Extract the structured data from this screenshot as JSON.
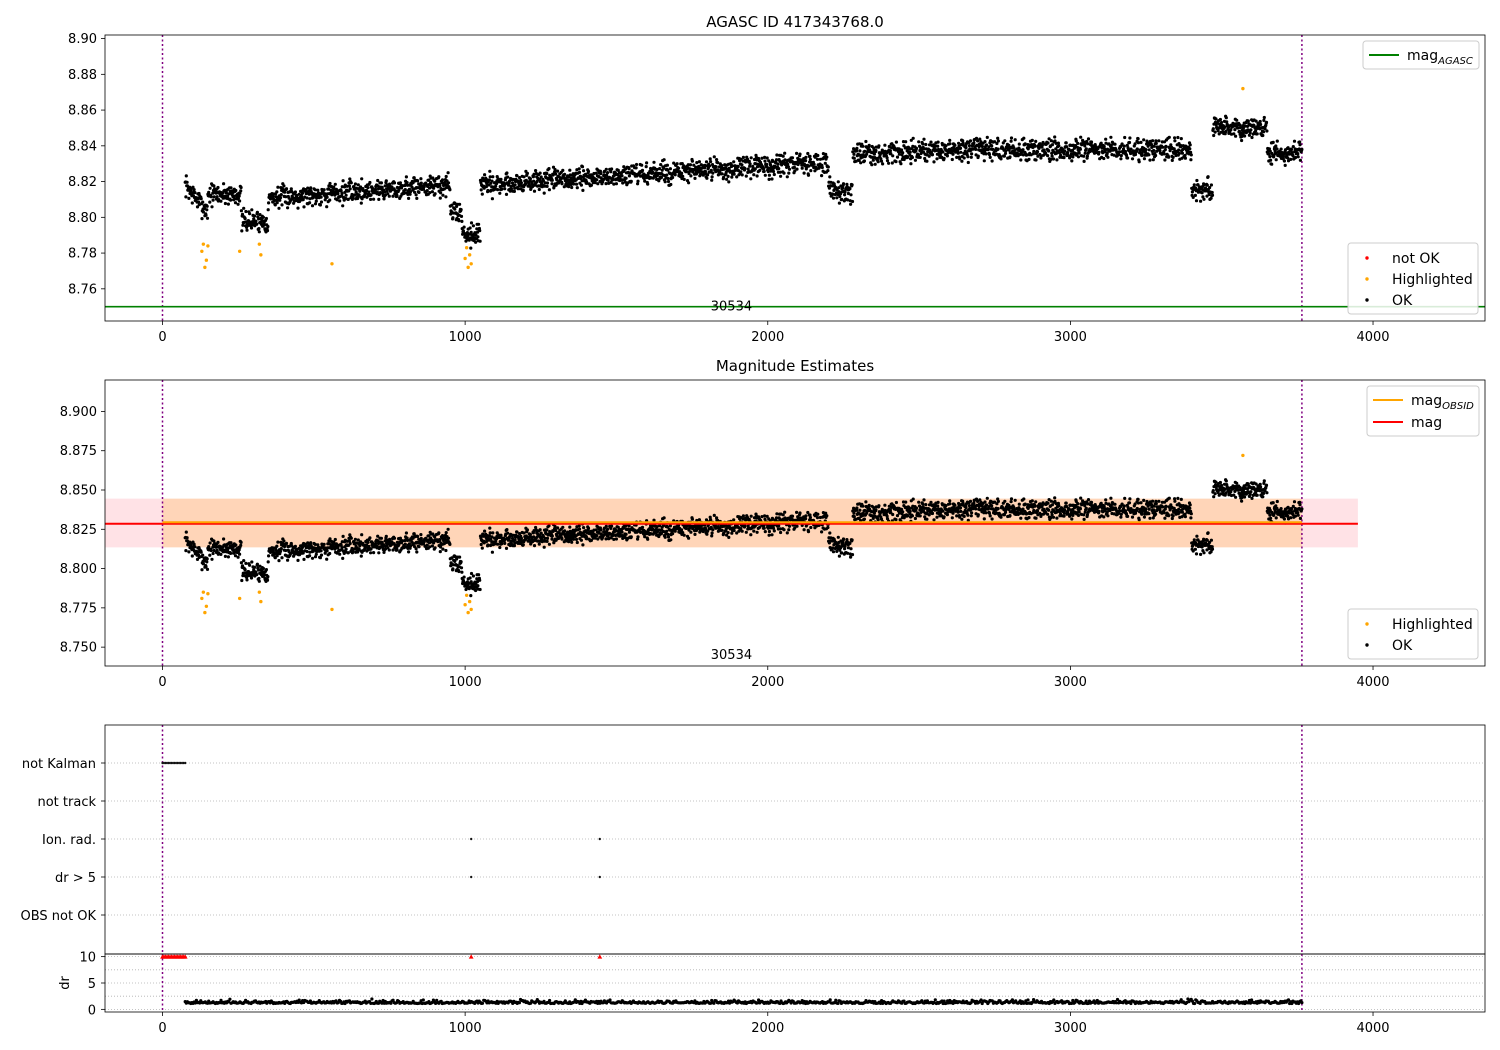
{
  "figure": {
    "title": "AGASC ID 417343768.0"
  },
  "chart_data": [
    {
      "type": "scatter",
      "title": "AGASC ID 417343768.0",
      "xlim": [
        -190,
        4370
      ],
      "ylim": [
        8.742,
        8.902
      ],
      "xticks": [
        0,
        1000,
        2000,
        3000,
        4000
      ],
      "yticks": [
        8.76,
        8.78,
        8.8,
        8.82,
        8.84,
        8.86,
        8.88,
        8.9
      ],
      "yticklabels": [
        "8.76",
        "8.78",
        "8.80",
        "8.82",
        "8.84",
        "8.86",
        "8.88",
        "8.90"
      ],
      "vlines": [
        0,
        3765
      ],
      "obsid_label": {
        "text": "30534",
        "x": 1880
      },
      "hline": {
        "label": "mag_AGASC",
        "label_main": "mag",
        "label_sub": "AGASC",
        "y": 8.75,
        "color": "#008000"
      },
      "legend_top": [
        {
          "label_main": "mag",
          "label_sub": "AGASC",
          "color": "#008000",
          "kind": "line"
        }
      ],
      "legend_bottom": [
        {
          "label": "not OK",
          "color": "#ff0000",
          "kind": "dot"
        },
        {
          "label": "Highlighted",
          "color": "#ffa500",
          "kind": "dot"
        },
        {
          "label": "OK",
          "color": "#000000",
          "kind": "dot"
        }
      ],
      "series": [
        {
          "name": "OK",
          "color": "#000000",
          "trend": "magnitude",
          "x_range": [
            75,
            3765
          ],
          "n": 3000,
          "seed": 7
        },
        {
          "name": "Highlighted",
          "color": "#ffa500",
          "x": [
            130,
            135,
            140,
            145,
            150,
            255,
            320,
            325,
            560,
            1000,
            1005,
            1010,
            1015,
            1020,
            3570
          ],
          "y": [
            8.781,
            8.785,
            8.772,
            8.776,
            8.784,
            8.781,
            8.785,
            8.779,
            8.774,
            8.777,
            8.783,
            8.772,
            8.779,
            8.774,
            8.872
          ]
        }
      ]
    },
    {
      "type": "scatter",
      "title": "Magnitude Estimates",
      "xlim": [
        -190,
        4370
      ],
      "ylim": [
        8.738,
        8.92
      ],
      "xticks": [
        0,
        1000,
        2000,
        3000,
        4000
      ],
      "yticks": [
        8.75,
        8.775,
        8.8,
        8.825,
        8.85,
        8.875,
        8.9
      ],
      "yticklabels": [
        "8.750",
        "8.775",
        "8.800",
        "8.825",
        "8.850",
        "8.875",
        "8.900"
      ],
      "vlines": [
        0,
        3765
      ],
      "obsid_label": {
        "text": "30534",
        "x": 1880
      },
      "bands": [
        {
          "x": [
            -190,
            3950
          ],
          "y": [
            8.8135,
            8.8445
          ],
          "color": "#ffb6c1",
          "opacity": 0.4
        },
        {
          "x": [
            0,
            3765
          ],
          "y": [
            8.8135,
            8.8445
          ],
          "color": "#ffa500",
          "opacity": 0.2
        }
      ],
      "lines": [
        {
          "label": "mag",
          "y": 8.8285,
          "x": [
            -190,
            3950
          ],
          "color": "#ff0000"
        },
        {
          "label": "mag_OBSID",
          "y": 8.8295,
          "x": [
            0,
            3765
          ],
          "color": "#ffa500"
        }
      ],
      "legend_top": [
        {
          "label_main": "mag",
          "label_sub": "OBSID",
          "color": "#ffa500",
          "kind": "line"
        },
        {
          "label_main": "mag",
          "label_sub": "",
          "color": "#ff0000",
          "kind": "line"
        }
      ],
      "legend_bottom": [
        {
          "label": "Highlighted",
          "color": "#ffa500",
          "kind": "dot"
        },
        {
          "label": "OK",
          "color": "#000000",
          "kind": "dot"
        }
      ],
      "series": [
        {
          "name": "OK",
          "color": "#000000",
          "trend": "magnitude",
          "x_range": [
            75,
            3765
          ],
          "n": 3000,
          "seed": 7
        },
        {
          "name": "Highlighted",
          "color": "#ffa500",
          "x": [
            130,
            135,
            140,
            145,
            150,
            255,
            320,
            325,
            560,
            1000,
            1005,
            1010,
            1015,
            1020,
            3570
          ],
          "y": [
            8.781,
            8.785,
            8.772,
            8.776,
            8.784,
            8.781,
            8.785,
            8.779,
            8.774,
            8.777,
            8.783,
            8.772,
            8.779,
            8.774,
            8.872
          ]
        }
      ]
    },
    {
      "type": "scatter",
      "title": "",
      "xlim": [
        -190,
        4370
      ],
      "categories": [
        "not Kalman",
        "not track",
        "Ion. rad.",
        "dr > 5",
        "OBS not OK"
      ],
      "vlines": [
        0,
        3765
      ],
      "flags": [
        {
          "category": "not Kalman",
          "x": [
            0,
            5,
            10,
            15,
            20,
            25,
            30,
            35,
            40,
            45,
            50,
            55,
            60,
            65,
            70,
            75
          ]
        },
        {
          "category": "Ion. rad.",
          "x": [
            1020,
            1445
          ]
        },
        {
          "category": "dr > 5",
          "x": [
            1020,
            1445
          ]
        }
      ]
    },
    {
      "type": "scatter",
      "title": "",
      "xlim": [
        -190,
        4370
      ],
      "ylim": [
        -0.5,
        10.5
      ],
      "ylabel": "dr",
      "yticks": [
        0,
        5,
        10
      ],
      "vlines": [
        0,
        3765
      ],
      "series": [
        {
          "name": "OK",
          "color": "#000000",
          "trend": "dr",
          "x_range": [
            75,
            3765
          ],
          "n": 1000,
          "seed": 11
        },
        {
          "name": "not OK",
          "color": "#ff0000",
          "marker": "triangle",
          "x": [
            0,
            5,
            10,
            15,
            20,
            25,
            30,
            35,
            40,
            45,
            50,
            55,
            60,
            65,
            70,
            75,
            1020,
            1445
          ],
          "y": [
            10,
            10,
            10,
            10,
            10,
            10,
            10,
            10,
            10,
            10,
            10,
            10,
            10,
            10,
            10,
            10,
            10,
            10
          ]
        }
      ]
    }
  ]
}
